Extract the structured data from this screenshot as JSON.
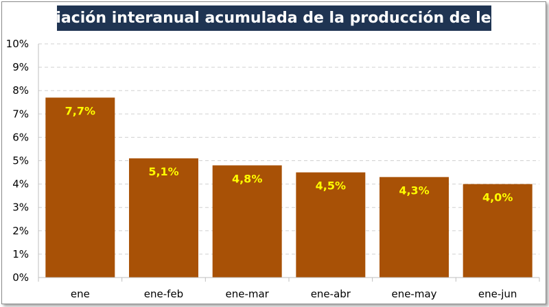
{
  "chart_data": {
    "type": "bar",
    "title": "Variación interanual acumulada de la producción de leche",
    "categories": [
      "ene",
      "ene-feb",
      "ene-mar",
      "ene-abr",
      "ene-may",
      "ene-jun"
    ],
    "values": [
      7.7,
      5.1,
      4.8,
      4.5,
      4.3,
      4.0
    ],
    "data_labels": [
      "7,7%",
      "5,1%",
      "4,8%",
      "4,5%",
      "4,3%",
      "4,0%"
    ],
    "yticks": [
      "0%",
      "1%",
      "2%",
      "3%",
      "4%",
      "5%",
      "6%",
      "7%",
      "8%",
      "9%",
      "10%"
    ],
    "ylim": [
      0,
      10
    ],
    "xlabel": "",
    "ylabel": "",
    "grid": true,
    "bar_color": "#a85106",
    "label_color": "#ffff00",
    "title_bg": "#1f3452"
  }
}
